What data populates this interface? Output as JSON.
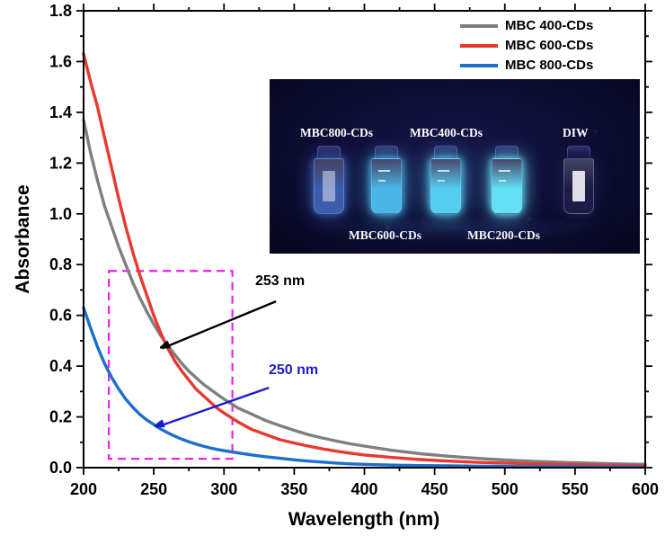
{
  "chart_data": {
    "type": "line",
    "title": "",
    "xlabel": "Wavelength (nm)",
    "ylabel": "Absorbance",
    "xlim": [
      200,
      600
    ],
    "ylim": [
      0,
      1.8
    ],
    "x_ticks": [
      200,
      250,
      300,
      350,
      400,
      450,
      500,
      550,
      600
    ],
    "y_ticks": [
      0,
      0.2,
      0.4,
      0.6,
      0.8,
      1.0,
      1.2,
      1.4,
      1.6,
      1.8
    ],
    "x_minor_step": 25,
    "grid": false,
    "legend_position": "top-right-inside",
    "x": [
      200,
      205,
      210,
      215,
      220,
      225,
      230,
      235,
      240,
      245,
      250,
      255,
      260,
      265,
      270,
      275,
      280,
      285,
      290,
      295,
      300,
      310,
      320,
      330,
      340,
      350,
      360,
      370,
      380,
      390,
      400,
      420,
      440,
      460,
      480,
      500,
      520,
      540,
      560,
      580,
      600
    ],
    "series": [
      {
        "name": "MBC 400-CDs",
        "color": "#7f7f7f",
        "values": [
          1.37,
          1.24,
          1.13,
          1.03,
          0.95,
          0.87,
          0.8,
          0.73,
          0.67,
          0.615,
          0.565,
          0.52,
          0.48,
          0.445,
          0.41,
          0.38,
          0.355,
          0.33,
          0.31,
          0.29,
          0.27,
          0.235,
          0.21,
          0.185,
          0.165,
          0.147,
          0.13,
          0.117,
          0.105,
          0.094,
          0.085,
          0.068,
          0.055,
          0.045,
          0.037,
          0.03,
          0.025,
          0.021,
          0.018,
          0.015,
          0.013
        ]
      },
      {
        "name": "MBC 600-CDs",
        "color": "#e8392f",
        "values": [
          1.63,
          1.52,
          1.42,
          1.3,
          1.18,
          1.06,
          0.95,
          0.85,
          0.76,
          0.68,
          0.6,
          0.53,
          0.47,
          0.42,
          0.38,
          0.345,
          0.31,
          0.285,
          0.26,
          0.235,
          0.215,
          0.18,
          0.15,
          0.13,
          0.11,
          0.097,
          0.085,
          0.074,
          0.065,
          0.057,
          0.05,
          0.04,
          0.032,
          0.026,
          0.021,
          0.018,
          0.015,
          0.013,
          0.011,
          0.009,
          0.008
        ]
      },
      {
        "name": "MBC 800-CDs",
        "color": "#1c6fce",
        "values": [
          0.63,
          0.55,
          0.475,
          0.41,
          0.355,
          0.31,
          0.27,
          0.238,
          0.21,
          0.188,
          0.17,
          0.152,
          0.137,
          0.124,
          0.112,
          0.102,
          0.093,
          0.085,
          0.078,
          0.072,
          0.067,
          0.058,
          0.05,
          0.043,
          0.037,
          0.031,
          0.026,
          0.022,
          0.018,
          0.015,
          0.013,
          0.01,
          0.008,
          0.007,
          0.006,
          0.005,
          0.004,
          0.004,
          0.003,
          0.003,
          0.003
        ]
      }
    ],
    "highlight_box": {
      "x0": 218,
      "x1": 306,
      "y0": 0.035,
      "y1": 0.775,
      "color": "#f21ef2"
    },
    "annotations": [
      {
        "text": "253 nm",
        "color": "#000000",
        "arrow_from": [
          337,
          0.655
        ],
        "arrow_to": [
          256,
          0.47
        ]
      },
      {
        "text": "250 nm",
        "color": "#1b1bd0",
        "arrow_from": [
          332,
          0.315
        ],
        "arrow_to": [
          252,
          0.16
        ]
      }
    ]
  },
  "inset": {
    "top_labels": [
      "MBC800-CDs",
      "MBC400-CDs",
      "DIW"
    ],
    "bottom_labels": [
      "MBC600-CDs",
      "MBC200-CDs"
    ],
    "vials": [
      {
        "label": "MBC800-CDs",
        "glow": "#3c5cae"
      },
      {
        "label": "MBC600-CDs",
        "glow": "#49b6e8"
      },
      {
        "label": "MBC400-CDs",
        "glow": "#55cdf0"
      },
      {
        "label": "MBC200-CDs",
        "glow": "#63e0f5"
      },
      {
        "label": "DIW",
        "glow": "#1c1c48"
      }
    ]
  }
}
